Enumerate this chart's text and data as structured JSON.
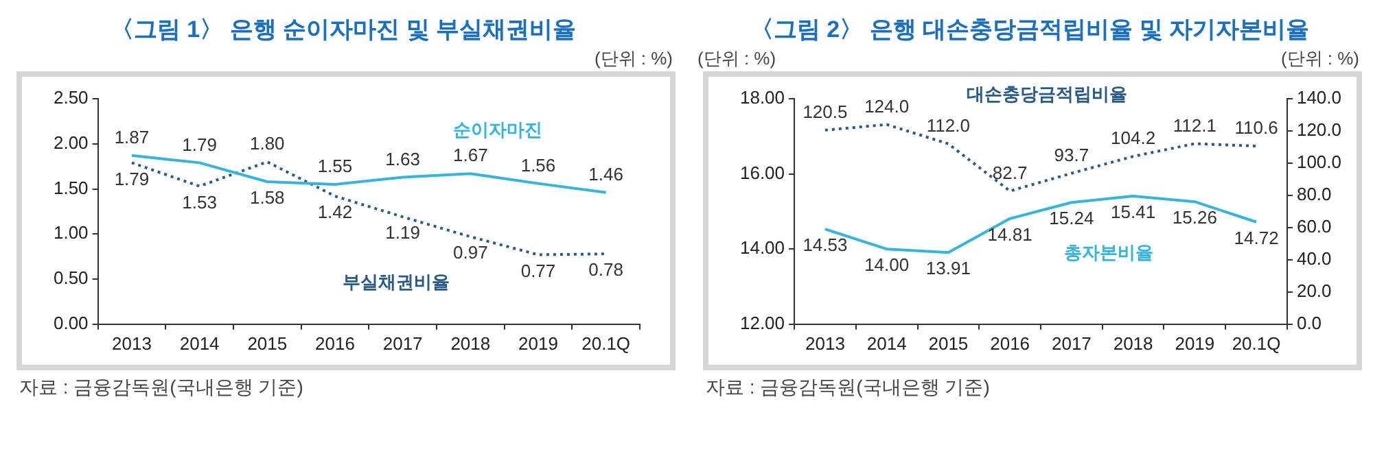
{
  "chart_data": [
    {
      "type": "line",
      "title": "〈그림 1〉 은행 순이자마진 및 부실채권비율",
      "ylabel": "(단위 : %)",
      "categories": [
        "2013",
        "2014",
        "2015",
        "2016",
        "2017",
        "2018",
        "2019",
        "20.1Q"
      ],
      "series": [
        {
          "name": "순이자마진",
          "color": "#33b5de",
          "line_style": "solid",
          "values": [
            1.87,
            1.79,
            1.58,
            1.55,
            1.63,
            1.67,
            1.56,
            1.46
          ],
          "value_labels": [
            "1.87",
            "1.79",
            "1.58",
            "1.55",
            "1.63",
            "1.67",
            "1.56",
            "1.46"
          ]
        },
        {
          "name": "부실채권비율",
          "color": "#2a5b86",
          "line_style": "dotted",
          "values": [
            1.79,
            1.53,
            1.8,
            1.42,
            1.19,
            0.97,
            0.77,
            0.78
          ],
          "value_labels": [
            "1.79",
            "1.53",
            "1.80",
            "1.42",
            "1.19",
            "0.97",
            "0.77",
            "0.78"
          ]
        }
      ],
      "ylim": [
        0,
        2.5
      ],
      "yticks": [
        {
          "value": 0,
          "label": "0.00"
        },
        {
          "value": 0.5,
          "label": "0.50"
        },
        {
          "value": 1,
          "label": "1.00"
        },
        {
          "value": 1.5,
          "label": "1.50"
        },
        {
          "value": 2,
          "label": "2.00"
        },
        {
          "value": 2.5,
          "label": "2.50"
        }
      ],
      "grid": false,
      "legend": false,
      "marker": "none",
      "annotations": [
        "자료 : 금융감독원(국내은행 기준)"
      ]
    },
    {
      "type": "line",
      "title": "〈그림 2〉 은행 대손충당금적립비율 및 자기자본비율",
      "ylabel": "(단위 : %)",
      "y2label": "(단위 : %)",
      "categories": [
        "2013",
        "2014",
        "2015",
        "2016",
        "2017",
        "2018",
        "2019",
        "20.1Q"
      ],
      "series": [
        {
          "name": "대손충당금적립비율",
          "color": "#2a5b86",
          "line_style": "dotted",
          "axis": "y2",
          "values": [
            120.5,
            124.0,
            112.0,
            82.7,
            93.7,
            104.2,
            112.1,
            110.6
          ],
          "value_labels": [
            "120.5",
            "124.0",
            "112.0",
            "82.7",
            "93.7",
            "104.2",
            "112.1",
            "110.6"
          ]
        },
        {
          "name": "총자본비율",
          "color": "#33b5de",
          "line_style": "solid",
          "values": [
            14.53,
            14.0,
            13.91,
            14.81,
            15.24,
            15.41,
            15.26,
            14.72
          ],
          "value_labels": [
            "14.53",
            "14.00",
            "13.91",
            "14.81",
            "15.24",
            "15.41",
            "15.26",
            "14.72"
          ]
        }
      ],
      "ylim": [
        12,
        18
      ],
      "yticks": [
        {
          "value": 12,
          "label": "12.00"
        },
        {
          "value": 14,
          "label": "14.00"
        },
        {
          "value": 16,
          "label": "16.00"
        },
        {
          "value": 18,
          "label": "18.00"
        }
      ],
      "y2lim": [
        0,
        140
      ],
      "y2ticks": [
        {
          "value": 0,
          "label": "0.0"
        },
        {
          "value": 20,
          "label": "20.0"
        },
        {
          "value": 40,
          "label": "40.0"
        },
        {
          "value": 60,
          "label": "60.0"
        },
        {
          "value": 80,
          "label": "80.0"
        },
        {
          "value": 100,
          "label": "100.0"
        },
        {
          "value": 120,
          "label": "120.0"
        },
        {
          "value": 140,
          "label": "140.0"
        }
      ],
      "grid": false,
      "legend": false,
      "marker": "none",
      "annotations": [
        "자료 : 금융감독원(국내은행 기준)"
      ]
    }
  ]
}
